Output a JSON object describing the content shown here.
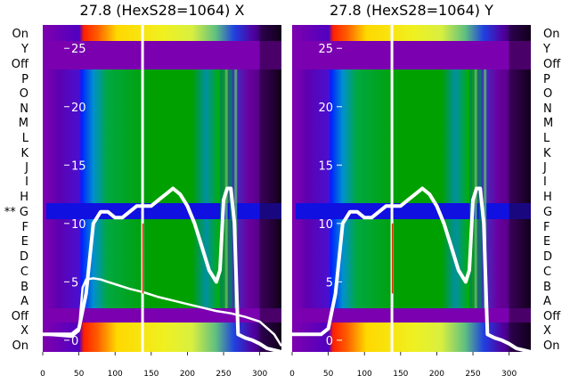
{
  "chart_data": [
    {
      "type": "heatmap",
      "title": "27.8 (HexS28=1064) X",
      "x_ticks": [
        "0",
        "50",
        "100",
        "150",
        "200",
        "250",
        "300"
      ],
      "xlim": [
        0,
        330
      ],
      "ylim": [
        -1,
        27
      ],
      "y_ticks": [
        "0",
        "5",
        "10",
        "15",
        "20",
        "25"
      ],
      "row_labels": [
        "On",
        "Y",
        "Off",
        "P",
        "O",
        "N",
        "M",
        "L",
        "K",
        "J",
        "I",
        "H",
        "** G",
        "F",
        "E",
        "D",
        "C",
        "B",
        "A",
        "Off",
        "X",
        "On"
      ],
      "series": [
        {
          "x": [
            0,
            40,
            50,
            60,
            70,
            80,
            90,
            100,
            110,
            120,
            130,
            140,
            150,
            160,
            170,
            180,
            190,
            200,
            210,
            220,
            230,
            240,
            245,
            250,
            255,
            260,
            265,
            270,
            280,
            290,
            300,
            310,
            330
          ],
          "y": [
            0.5,
            0.5,
            1,
            4,
            10,
            11,
            11,
            10.5,
            10.5,
            11,
            11.5,
            11.5,
            11.5,
            12,
            12.5,
            13,
            12.5,
            11.5,
            10,
            8,
            6,
            5,
            6,
            12,
            13,
            13,
            10,
            0.5,
            0.2,
            0,
            -0.3,
            -0.7,
            -1
          ]
        },
        {
          "x": [
            0,
            40,
            50,
            55,
            60,
            70,
            80,
            90,
            100,
            120,
            140,
            160,
            180,
            200,
            220,
            240,
            260,
            280,
            300,
            320,
            330
          ],
          "y": [
            0.5,
            0.3,
            0.8,
            4.5,
            5.2,
            5.3,
            5.2,
            5,
            4.8,
            4.4,
            4.1,
            3.7,
            3.4,
            3.1,
            2.8,
            2.5,
            2.3,
            2.0,
            1.6,
            0.5,
            -0.5
          ]
        }
      ],
      "spike": {
        "x": 138,
        "y_from": -1,
        "y_to": 27
      }
    },
    {
      "type": "heatmap",
      "title": "27.8 (HexS28=1064) Y",
      "x_ticks": [
        "0",
        "50",
        "100",
        "150",
        "200",
        "250",
        "300"
      ],
      "xlim": [
        0,
        330
      ],
      "ylim": [
        -1,
        27
      ],
      "y_ticks": [
        "0",
        "5",
        "10",
        "15",
        "20",
        "25"
      ],
      "row_labels": [
        "On",
        "Y",
        "Off",
        "P",
        "O",
        "N",
        "M",
        "L",
        "K",
        "J",
        "I",
        "H",
        "G",
        "F",
        "E",
        "D",
        "C",
        "B",
        "A",
        "Off",
        "X",
        "On"
      ],
      "series": [
        {
          "x": [
            0,
            40,
            50,
            60,
            70,
            80,
            90,
            100,
            110,
            120,
            130,
            140,
            150,
            160,
            170,
            180,
            190,
            200,
            210,
            220,
            230,
            240,
            245,
            250,
            255,
            260,
            265,
            270,
            280,
            290,
            300,
            310,
            330
          ],
          "y": [
            0.5,
            0.5,
            1,
            4,
            10,
            11,
            11,
            10.5,
            10.5,
            11,
            11.5,
            11.5,
            11.5,
            12,
            12.5,
            13,
            12.5,
            11.5,
            10,
            8,
            6,
            5,
            6,
            12,
            13,
            13,
            10,
            0.5,
            0.2,
            0,
            -0.3,
            -0.7,
            -1
          ]
        }
      ],
      "spike": {
        "x": 138,
        "y_from": -1,
        "y_to": 27
      }
    }
  ]
}
